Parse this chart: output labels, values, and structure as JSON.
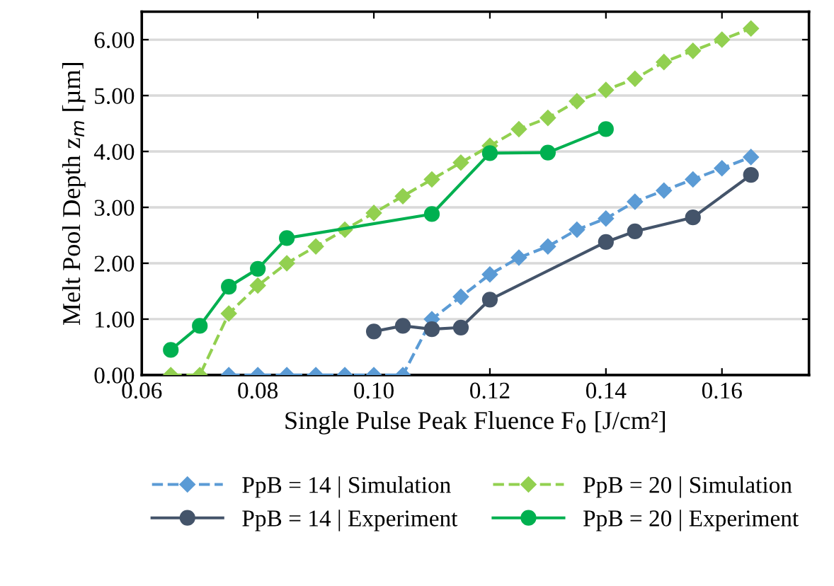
{
  "chart_data": {
    "type": "line",
    "xlabel": "Single Pulse Peak Fluence F$_{0}$ [J/cm²]",
    "ylabel": "Melt Pool Depth z$_{m}$ [µm]",
    "xlim": [
      0.06,
      0.175
    ],
    "ylim": [
      0,
      6.5
    ],
    "xticks": [
      {
        "value": 0.06,
        "label": "0.06"
      },
      {
        "value": 0.08,
        "label": "0.08"
      },
      {
        "value": 0.1,
        "label": "0.10"
      },
      {
        "value": 0.12,
        "label": "0.12"
      },
      {
        "value": 0.14,
        "label": "0.14"
      },
      {
        "value": 0.16,
        "label": "0.16"
      }
    ],
    "yticks": [
      {
        "value": 0,
        "label": "0.00"
      },
      {
        "value": 1,
        "label": "1.00"
      },
      {
        "value": 2,
        "label": "2.00"
      },
      {
        "value": 3,
        "label": "3.00"
      },
      {
        "value": 4,
        "label": "4.00"
      },
      {
        "value": 5,
        "label": "5.00"
      },
      {
        "value": 6,
        "label": "6.00"
      }
    ],
    "grid": "y",
    "legend": "bottom",
    "series": [
      {
        "name": "PpB = 14 | Simulation",
        "color": "#5b9bd5",
        "marker": "diamond",
        "line_style": "dashed",
        "x": [
          0.075,
          0.08,
          0.085,
          0.09,
          0.095,
          0.1,
          0.105,
          0.11,
          0.115,
          0.12,
          0.125,
          0.13,
          0.135,
          0.14,
          0.145,
          0.15,
          0.155,
          0.16,
          0.165
        ],
        "values": [
          0,
          0,
          0,
          0,
          0,
          0,
          0,
          1.0,
          1.4,
          1.8,
          2.1,
          2.3,
          2.6,
          2.8,
          3.1,
          3.3,
          3.5,
          3.7,
          3.9
        ]
      },
      {
        "name": "PpB = 14 | Experiment",
        "color": "#44546a",
        "marker": "circle",
        "line_style": "solid",
        "x": [
          0.1,
          0.105,
          0.11,
          0.115,
          0.12,
          0.14,
          0.145,
          0.155,
          0.165
        ],
        "values": [
          0.78,
          0.88,
          0.82,
          0.85,
          1.35,
          2.38,
          2.57,
          2.82,
          3.58
        ]
      },
      {
        "name": "PpB = 20 | Simulation",
        "color": "#92d050",
        "marker": "diamond",
        "line_style": "dashed",
        "x": [
          0.065,
          0.07,
          0.075,
          0.08,
          0.085,
          0.09,
          0.095,
          0.1,
          0.105,
          0.11,
          0.115,
          0.12,
          0.125,
          0.13,
          0.135,
          0.14,
          0.145,
          0.15,
          0.155,
          0.16,
          0.165
        ],
        "values": [
          0,
          0,
          1.1,
          1.6,
          2.0,
          2.3,
          2.6,
          2.9,
          3.2,
          3.5,
          3.8,
          4.1,
          4.4,
          4.6,
          4.9,
          5.1,
          5.3,
          5.6,
          5.8,
          6.0,
          6.2
        ]
      },
      {
        "name": "PpB = 20 | Experiment",
        "color": "#00b050",
        "marker": "circle",
        "line_style": "solid",
        "x": [
          0.065,
          0.07,
          0.075,
          0.08,
          0.085,
          0.11,
          0.12,
          0.13,
          0.14
        ],
        "values": [
          0.45,
          0.88,
          1.58,
          1.9,
          2.45,
          2.88,
          3.97,
          3.98,
          4.4
        ]
      }
    ]
  }
}
